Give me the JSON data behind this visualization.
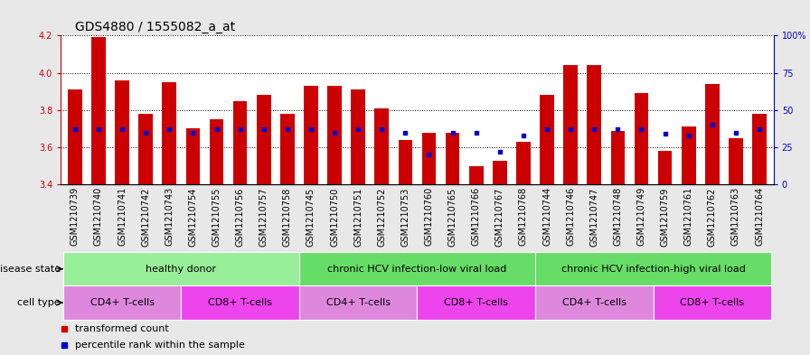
{
  "title": "GDS4880 / 1555082_a_at",
  "samples": [
    "GSM1210739",
    "GSM1210740",
    "GSM1210741",
    "GSM1210742",
    "GSM1210743",
    "GSM1210754",
    "GSM1210755",
    "GSM1210756",
    "GSM1210757",
    "GSM1210758",
    "GSM1210745",
    "GSM1210750",
    "GSM1210751",
    "GSM1210752",
    "GSM1210753",
    "GSM1210760",
    "GSM1210765",
    "GSM1210766",
    "GSM1210767",
    "GSM1210768",
    "GSM1210744",
    "GSM1210746",
    "GSM1210747",
    "GSM1210748",
    "GSM1210749",
    "GSM1210759",
    "GSM1210761",
    "GSM1210762",
    "GSM1210763",
    "GSM1210764"
  ],
  "transformed_count": [
    3.91,
    4.19,
    3.96,
    3.78,
    3.95,
    3.7,
    3.75,
    3.85,
    3.88,
    3.78,
    3.93,
    3.93,
    3.91,
    3.81,
    3.64,
    3.68,
    3.68,
    3.5,
    3.53,
    3.63,
    3.88,
    4.04,
    4.04,
    3.69,
    3.89,
    3.58,
    3.71,
    3.94,
    3.65,
    3.78
  ],
  "percentile_rank": [
    37,
    37,
    37,
    35,
    37,
    35,
    37,
    37,
    37,
    37,
    37,
    35,
    37,
    37,
    35,
    20,
    35,
    35,
    22,
    33,
    37,
    37,
    37,
    37,
    37,
    34,
    33,
    40,
    35,
    37
  ],
  "y_min": 3.4,
  "y_max": 4.2,
  "y_ticks": [
    3.4,
    3.6,
    3.8,
    4.0,
    4.2
  ],
  "right_y_ticks": [
    0,
    25,
    50,
    75,
    100
  ],
  "right_y_labels": [
    "0",
    "25",
    "50",
    "75",
    "100%"
  ],
  "bar_color": "#cc0000",
  "dot_color": "#0000cc",
  "bar_width": 0.6,
  "disease_groups": [
    {
      "label": "healthy donor",
      "start": 0,
      "end": 9,
      "color": "#99ee99"
    },
    {
      "label": "chronic HCV infection-low viral load",
      "start": 10,
      "end": 19,
      "color": "#66dd66"
    },
    {
      "label": "chronic HCV infection-high viral load",
      "start": 20,
      "end": 29,
      "color": "#66dd66"
    }
  ],
  "cell_groups": [
    {
      "label": "CD4+ T-cells",
      "start": 0,
      "end": 4,
      "color": "#dd88dd"
    },
    {
      "label": "CD8+ T-cells",
      "start": 5,
      "end": 9,
      "color": "#ee44ee"
    },
    {
      "label": "CD4+ T-cells",
      "start": 10,
      "end": 14,
      "color": "#dd88dd"
    },
    {
      "label": "CD8+ T-cells",
      "start": 15,
      "end": 19,
      "color": "#ee44ee"
    },
    {
      "label": "CD4+ T-cells",
      "start": 20,
      "end": 24,
      "color": "#dd88dd"
    },
    {
      "label": "CD8+ T-cells",
      "start": 25,
      "end": 29,
      "color": "#ee44ee"
    }
  ],
  "disease_state_label": "disease state",
  "cell_type_label": "cell type",
  "legend_transformed": "transformed count",
  "legend_percentile": "percentile rank within the sample",
  "bg_color": "#e8e8e8",
  "plot_bg": "#ffffff",
  "title_fontsize": 10,
  "tick_fontsize": 7,
  "label_fontsize": 8,
  "annot_fontsize": 8
}
